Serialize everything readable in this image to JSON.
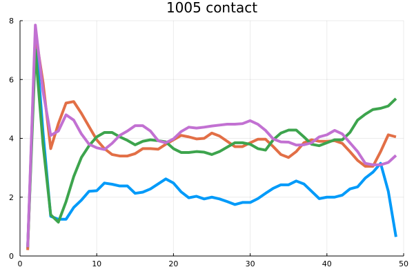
{
  "chart_data": {
    "type": "line",
    "title": "1005 contact",
    "xlabel": "",
    "ylabel": "",
    "xlim": [
      0,
      50
    ],
    "ylim": [
      0,
      8
    ],
    "x_ticks": [
      0,
      10,
      20,
      30,
      40,
      50
    ],
    "y_ticks": [
      0,
      2,
      4,
      6,
      8
    ],
    "grid": true,
    "legend": "none",
    "x": [
      1,
      2,
      3,
      4,
      5,
      6,
      7,
      8,
      9,
      10,
      11,
      12,
      13,
      14,
      15,
      16,
      17,
      18,
      19,
      20,
      21,
      22,
      23,
      24,
      25,
      26,
      27,
      28,
      29,
      30,
      31,
      32,
      33,
      34,
      35,
      36,
      37,
      38,
      39,
      40,
      41,
      42,
      43,
      44,
      45,
      46,
      47,
      48,
      49
    ],
    "series": [
      {
        "color": "#009af9",
        "values": [
          0.25,
          7.6,
          4.2,
          1.35,
          1.25,
          1.25,
          1.65,
          1.9,
          2.2,
          2.22,
          2.48,
          2.44,
          2.38,
          2.38,
          2.13,
          2.17,
          2.28,
          2.45,
          2.62,
          2.48,
          2.18,
          1.98,
          2.03,
          1.94,
          2.0,
          1.94,
          1.85,
          1.75,
          1.82,
          1.82,
          1.95,
          2.13,
          2.3,
          2.42,
          2.42,
          2.55,
          2.45,
          2.2,
          1.95,
          2.0,
          2.0,
          2.07,
          2.28,
          2.35,
          2.65,
          2.85,
          3.15,
          2.2,
          0.65
        ]
      },
      {
        "color": "#e26f46",
        "values": [
          0.2,
          7.6,
          5.9,
          3.65,
          4.5,
          5.2,
          5.25,
          4.85,
          4.4,
          3.95,
          3.65,
          3.45,
          3.4,
          3.4,
          3.48,
          3.65,
          3.65,
          3.63,
          3.8,
          3.95,
          4.1,
          4.05,
          3.98,
          4.0,
          4.18,
          4.08,
          3.9,
          3.72,
          3.72,
          3.85,
          3.97,
          3.97,
          3.72,
          3.45,
          3.35,
          3.55,
          3.85,
          3.95,
          3.9,
          3.9,
          3.92,
          3.83,
          3.55,
          3.25,
          3.05,
          3.05,
          3.55,
          4.12,
          4.05
        ]
      },
      {
        "color": "#3da44d",
        "values": [
          0.3,
          7.0,
          3.8,
          1.4,
          1.15,
          1.85,
          2.7,
          3.35,
          3.75,
          4.05,
          4.2,
          4.2,
          4.05,
          3.93,
          3.78,
          3.9,
          3.95,
          3.92,
          3.88,
          3.65,
          3.52,
          3.52,
          3.55,
          3.53,
          3.45,
          3.55,
          3.7,
          3.85,
          3.85,
          3.8,
          3.65,
          3.6,
          3.95,
          4.18,
          4.28,
          4.28,
          4.05,
          3.8,
          3.75,
          3.85,
          3.95,
          3.95,
          4.2,
          4.62,
          4.82,
          4.98,
          5.02,
          5.1,
          5.35
        ]
      },
      {
        "color": "#c271d2",
        "values": [
          0.3,
          7.85,
          5.6,
          4.1,
          4.25,
          4.8,
          4.62,
          4.15,
          3.8,
          3.68,
          3.62,
          3.83,
          4.1,
          4.25,
          4.43,
          4.43,
          4.25,
          3.92,
          3.85,
          3.98,
          4.23,
          4.38,
          4.35,
          4.38,
          4.42,
          4.45,
          4.48,
          4.48,
          4.5,
          4.6,
          4.48,
          4.27,
          3.98,
          3.88,
          3.87,
          3.77,
          3.78,
          3.85,
          4.05,
          4.12,
          4.27,
          4.15,
          3.85,
          3.55,
          3.15,
          3.1,
          3.1,
          3.18,
          3.42
        ]
      }
    ]
  }
}
